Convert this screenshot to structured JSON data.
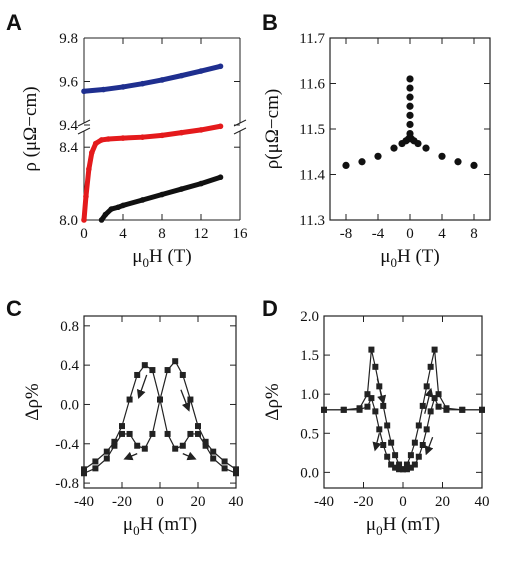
{
  "chart_data": [
    {
      "panel": "A",
      "type": "scatter",
      "xlabel_main": "μ",
      "xlabel_sub": "0",
      "xlabel_rest": "H (T)",
      "ylabel": "ρ (μΩ−cm)",
      "xlim": [
        0,
        16
      ],
      "xticks": [
        0,
        4,
        8,
        12,
        16
      ],
      "broken_y_axis": true,
      "ylim_upper": [
        9.4,
        9.8
      ],
      "yticks_upper": [
        9.4,
        9.6,
        9.8
      ],
      "ylim_lower": [
        8.0,
        8.5
      ],
      "yticks_lower": [
        8.0,
        8.4
      ],
      "series": [
        {
          "color": "#1f2f8f",
          "segment": "upper",
          "x": [
            0,
            2,
            4,
            6,
            8,
            10,
            12,
            14
          ],
          "y": [
            9.555,
            9.563,
            9.575,
            9.59,
            9.607,
            9.627,
            9.648,
            9.67
          ]
        },
        {
          "color": "#e41a1c",
          "segment": "lower",
          "x": [
            0,
            0.2,
            0.5,
            0.8,
            1.2,
            1.8,
            2.5,
            4,
            6,
            8,
            10,
            12,
            14
          ],
          "y": [
            8.0,
            8.13,
            8.28,
            8.37,
            8.42,
            8.44,
            8.445,
            8.45,
            8.455,
            8.465,
            8.48,
            8.495,
            8.515
          ]
        },
        {
          "color": "#111111",
          "segment": "lower",
          "x": [
            1.8,
            2.2,
            2.8,
            3.5,
            4,
            6,
            8,
            10,
            12,
            14
          ],
          "y": [
            8.0,
            8.03,
            8.06,
            8.07,
            8.08,
            8.11,
            8.14,
            8.17,
            8.2,
            8.235
          ]
        }
      ]
    },
    {
      "panel": "B",
      "type": "scatter",
      "xlabel_main": "μ",
      "xlabel_sub": "0",
      "xlabel_rest": "H (T)",
      "ylabel": "ρ(μΩ−cm)",
      "xlim": [
        -10,
        10
      ],
      "xticks": [
        -8,
        -4,
        0,
        4,
        8
      ],
      "ylim": [
        11.3,
        11.7
      ],
      "yticks": [
        11.3,
        11.4,
        11.5,
        11.6,
        11.7
      ],
      "series": [
        {
          "color": "#111111",
          "x": [
            -8,
            -6,
            -4,
            -2,
            -1,
            -0.5,
            -0.2,
            0,
            0.2,
            0.5,
            1,
            2,
            4,
            6,
            8
          ],
          "y": [
            11.42,
            11.428,
            11.44,
            11.458,
            11.468,
            11.474,
            11.478,
            11.482,
            11.478,
            11.474,
            11.468,
            11.458,
            11.44,
            11.428,
            11.42
          ]
        },
        {
          "color": "#111111",
          "x": [
            0,
            0,
            0,
            0,
            0,
            0,
            0
          ],
          "y": [
            11.49,
            11.51,
            11.53,
            11.55,
            11.57,
            11.59,
            11.61
          ]
        }
      ]
    },
    {
      "panel": "C",
      "type": "line",
      "xlabel_main": "μ",
      "xlabel_sub": "0",
      "xlabel_rest": "H (mT)",
      "ylabel": "Δρ%",
      "xlim": [
        -40,
        40
      ],
      "xticks": [
        -40,
        -20,
        0,
        20,
        40
      ],
      "ylim": [
        -0.85,
        0.9
      ],
      "yticks": [
        -0.8,
        -0.4,
        0.0,
        0.4,
        0.8
      ],
      "series": [
        {
          "color": "#222222",
          "x": [
            -40,
            -34,
            -28,
            -24,
            -20,
            -16,
            -12,
            -8,
            -4,
            0,
            4,
            8,
            12,
            16,
            20,
            24,
            28,
            34,
            40
          ],
          "y": [
            -0.66,
            -0.58,
            -0.48,
            -0.38,
            -0.22,
            0.05,
            0.3,
            0.4,
            0.35,
            0.05,
            -0.3,
            -0.45,
            -0.42,
            -0.3,
            -0.3,
            -0.42,
            -0.55,
            -0.65,
            -0.7
          ]
        },
        {
          "color": "#222222",
          "x": [
            40,
            34,
            28,
            24,
            20,
            16,
            12,
            8,
            4,
            0,
            -4,
            -8,
            -12,
            -16,
            -20,
            -24,
            -28,
            -34,
            -40
          ],
          "y": [
            -0.66,
            -0.58,
            -0.48,
            -0.38,
            -0.22,
            0.05,
            0.3,
            0.44,
            0.35,
            0.05,
            -0.3,
            -0.45,
            -0.42,
            -0.3,
            -0.3,
            -0.42,
            -0.55,
            -0.65,
            -0.7
          ]
        }
      ],
      "arrows": [
        {
          "x1": -7,
          "y1": 0.3,
          "x2": -11,
          "y2": 0.08
        },
        {
          "x1": 11,
          "y1": 0.15,
          "x2": 15,
          "y2": -0.05
        },
        {
          "x1": -12,
          "y1": -0.5,
          "x2": -18,
          "y2": -0.55
        },
        {
          "x1": 12,
          "y1": -0.5,
          "x2": 18,
          "y2": -0.55
        }
      ]
    },
    {
      "panel": "D",
      "type": "line",
      "xlabel_main": "μ",
      "xlabel_sub": "0",
      "xlabel_rest": "H (mT)",
      "ylabel": "Δρ%",
      "xlim": [
        -40,
        40
      ],
      "xticks": [
        -40,
        -20,
        0,
        20,
        40
      ],
      "ylim": [
        -0.2,
        2.0
      ],
      "yticks": [
        0.0,
        0.5,
        1.0,
        1.5,
        2.0
      ],
      "series": [
        {
          "color": "#222222",
          "x": [
            -40,
            -30,
            -22,
            -18,
            -16,
            -14,
            -12,
            -10,
            -8,
            -6,
            -4,
            -2,
            0,
            2,
            4,
            6,
            8,
            10,
            12,
            14,
            16,
            18,
            22,
            30,
            40
          ],
          "y": [
            0.8,
            0.8,
            0.8,
            0.84,
            0.95,
            0.78,
            0.55,
            0.35,
            0.2,
            0.1,
            0.06,
            0.04,
            0.04,
            0.1,
            0.22,
            0.38,
            0.6,
            0.85,
            1.1,
            1.35,
            1.57,
            1.0,
            0.82,
            0.8,
            0.8
          ]
        },
        {
          "color": "#222222",
          "x": [
            40,
            30,
            22,
            18,
            16,
            14,
            12,
            10,
            8,
            6,
            4,
            2,
            0,
            -2,
            -4,
            -6,
            -8,
            -10,
            -12,
            -14,
            -16,
            -18,
            -22,
            -30,
            -40
          ],
          "y": [
            0.8,
            0.8,
            0.8,
            0.84,
            0.95,
            0.78,
            0.55,
            0.35,
            0.2,
            0.1,
            0.06,
            0.04,
            0.04,
            0.1,
            0.22,
            0.38,
            0.6,
            0.85,
            1.1,
            1.35,
            1.57,
            1.0,
            0.82,
            0.8,
            0.8
          ]
        }
      ],
      "arrows": [
        {
          "x1": -13,
          "y1": 1.2,
          "x2": -10,
          "y2": 0.9
        },
        {
          "x1": -12,
          "y1": 0.5,
          "x2": -14,
          "y2": 0.3
        },
        {
          "x1": 11,
          "y1": 0.75,
          "x2": 14,
          "y2": 1.05
        },
        {
          "x1": 15,
          "y1": 0.45,
          "x2": 12,
          "y2": 0.25
        }
      ]
    }
  ],
  "panel_labels": [
    "A",
    "B",
    "C",
    "D"
  ]
}
